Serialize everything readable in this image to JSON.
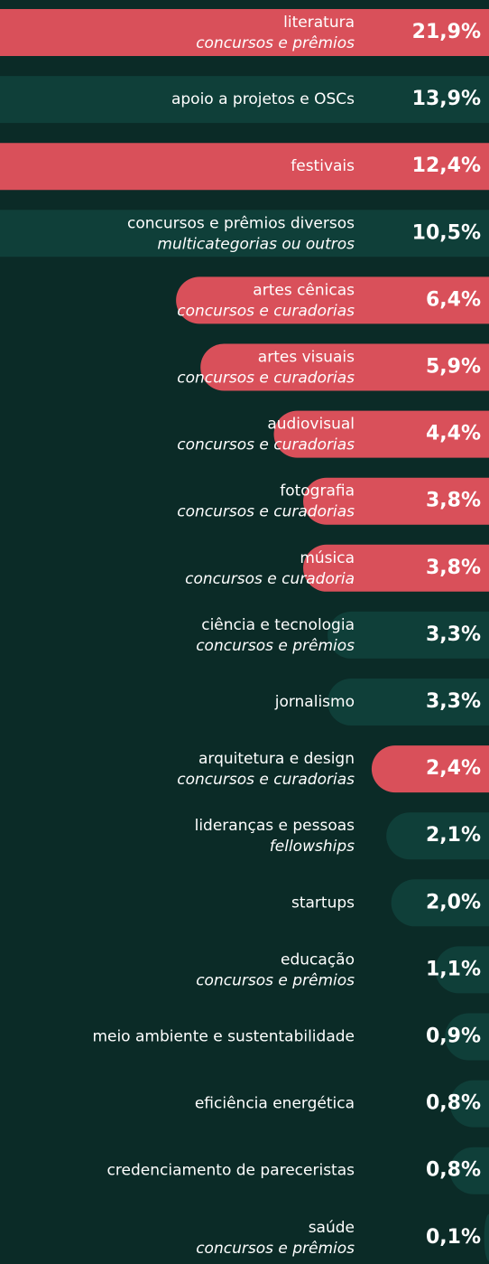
{
  "chart_data": {
    "type": "bar",
    "categories": [
      "literatura",
      "apoio a projetos e OSCs",
      "festivais",
      "concursos e prêmios diversos",
      "artes cênicas",
      "artes visuais",
      "audiovisual",
      "fotografia",
      "música",
      "ciência e tecnologia",
      "jornalismo",
      "arquitetura e design",
      "lideranças e pessoas",
      "startups",
      "educação",
      "meio ambiente e sustentabilidade",
      "eficiência energética",
      "credenciamento de pareceristas",
      "saúde"
    ],
    "subtitles": [
      "concursos e prêmios",
      null,
      null,
      "multicategorias ou outros",
      "concursos e curadorias",
      "concursos e curadorias",
      "concursos e curadorias",
      "concursos e curadorias",
      "concursos e curadoria",
      "concursos e prêmios",
      null,
      "concursos e curadorias",
      "fellowships",
      null,
      "concursos e prêmios",
      null,
      null,
      null,
      "concursos e prêmios"
    ],
    "values": [
      21.9,
      13.9,
      12.4,
      10.5,
      6.4,
      5.9,
      4.4,
      3.8,
      3.8,
      3.3,
      3.3,
      2.4,
      2.1,
      2.0,
      1.1,
      0.9,
      0.8,
      0.8,
      0.1
    ],
    "value_labels": [
      "21,9%",
      "13,9%",
      "12,4%",
      "10,5%",
      "6,4%",
      "5,9%",
      "4,4%",
      "3,8%",
      "3,8%",
      "3,3%",
      "3,3%",
      "2,4%",
      "2,1%",
      "2,0%",
      "1,1%",
      "0,9%",
      "0,8%",
      "0,8%",
      "0,1%"
    ],
    "colors": [
      "#d9505a",
      "#0f3f39",
      "#d9505a",
      "#0f3f39",
      "#d9505a",
      "#d9505a",
      "#d9505a",
      "#d9505a",
      "#d9505a",
      "#0f3f39",
      "#0f3f39",
      "#d9505a",
      "#0f3f39",
      "#0f3f39",
      "#0f3f39",
      "#0f3f39",
      "#0f3f39",
      "#0f3f39",
      "#0f3f39"
    ],
    "xlim": [
      0,
      10
    ]
  }
}
